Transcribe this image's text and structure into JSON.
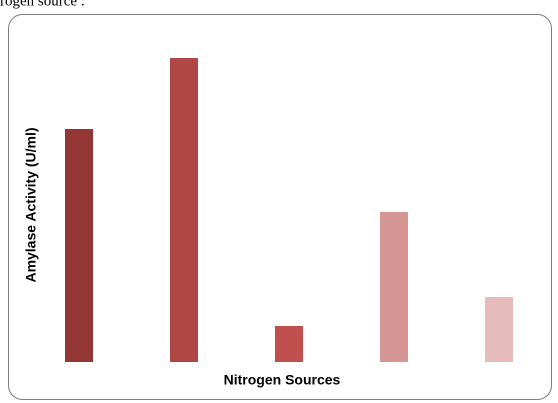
{
  "caption": "rogen source :",
  "chart_data": {
    "type": "bar",
    "x_label": "Nitrogen Sources",
    "y_label": "Amylase Activity (U/ml)",
    "categories": [
      null,
      null,
      null,
      null,
      null
    ],
    "values": [
      233,
      304,
      36,
      150,
      65
    ],
    "colors": [
      "#943634",
      "#b04745",
      "#c0504d",
      "#d59694",
      "#e6bcbb"
    ],
    "ylim": [
      0,
      310
    ]
  }
}
